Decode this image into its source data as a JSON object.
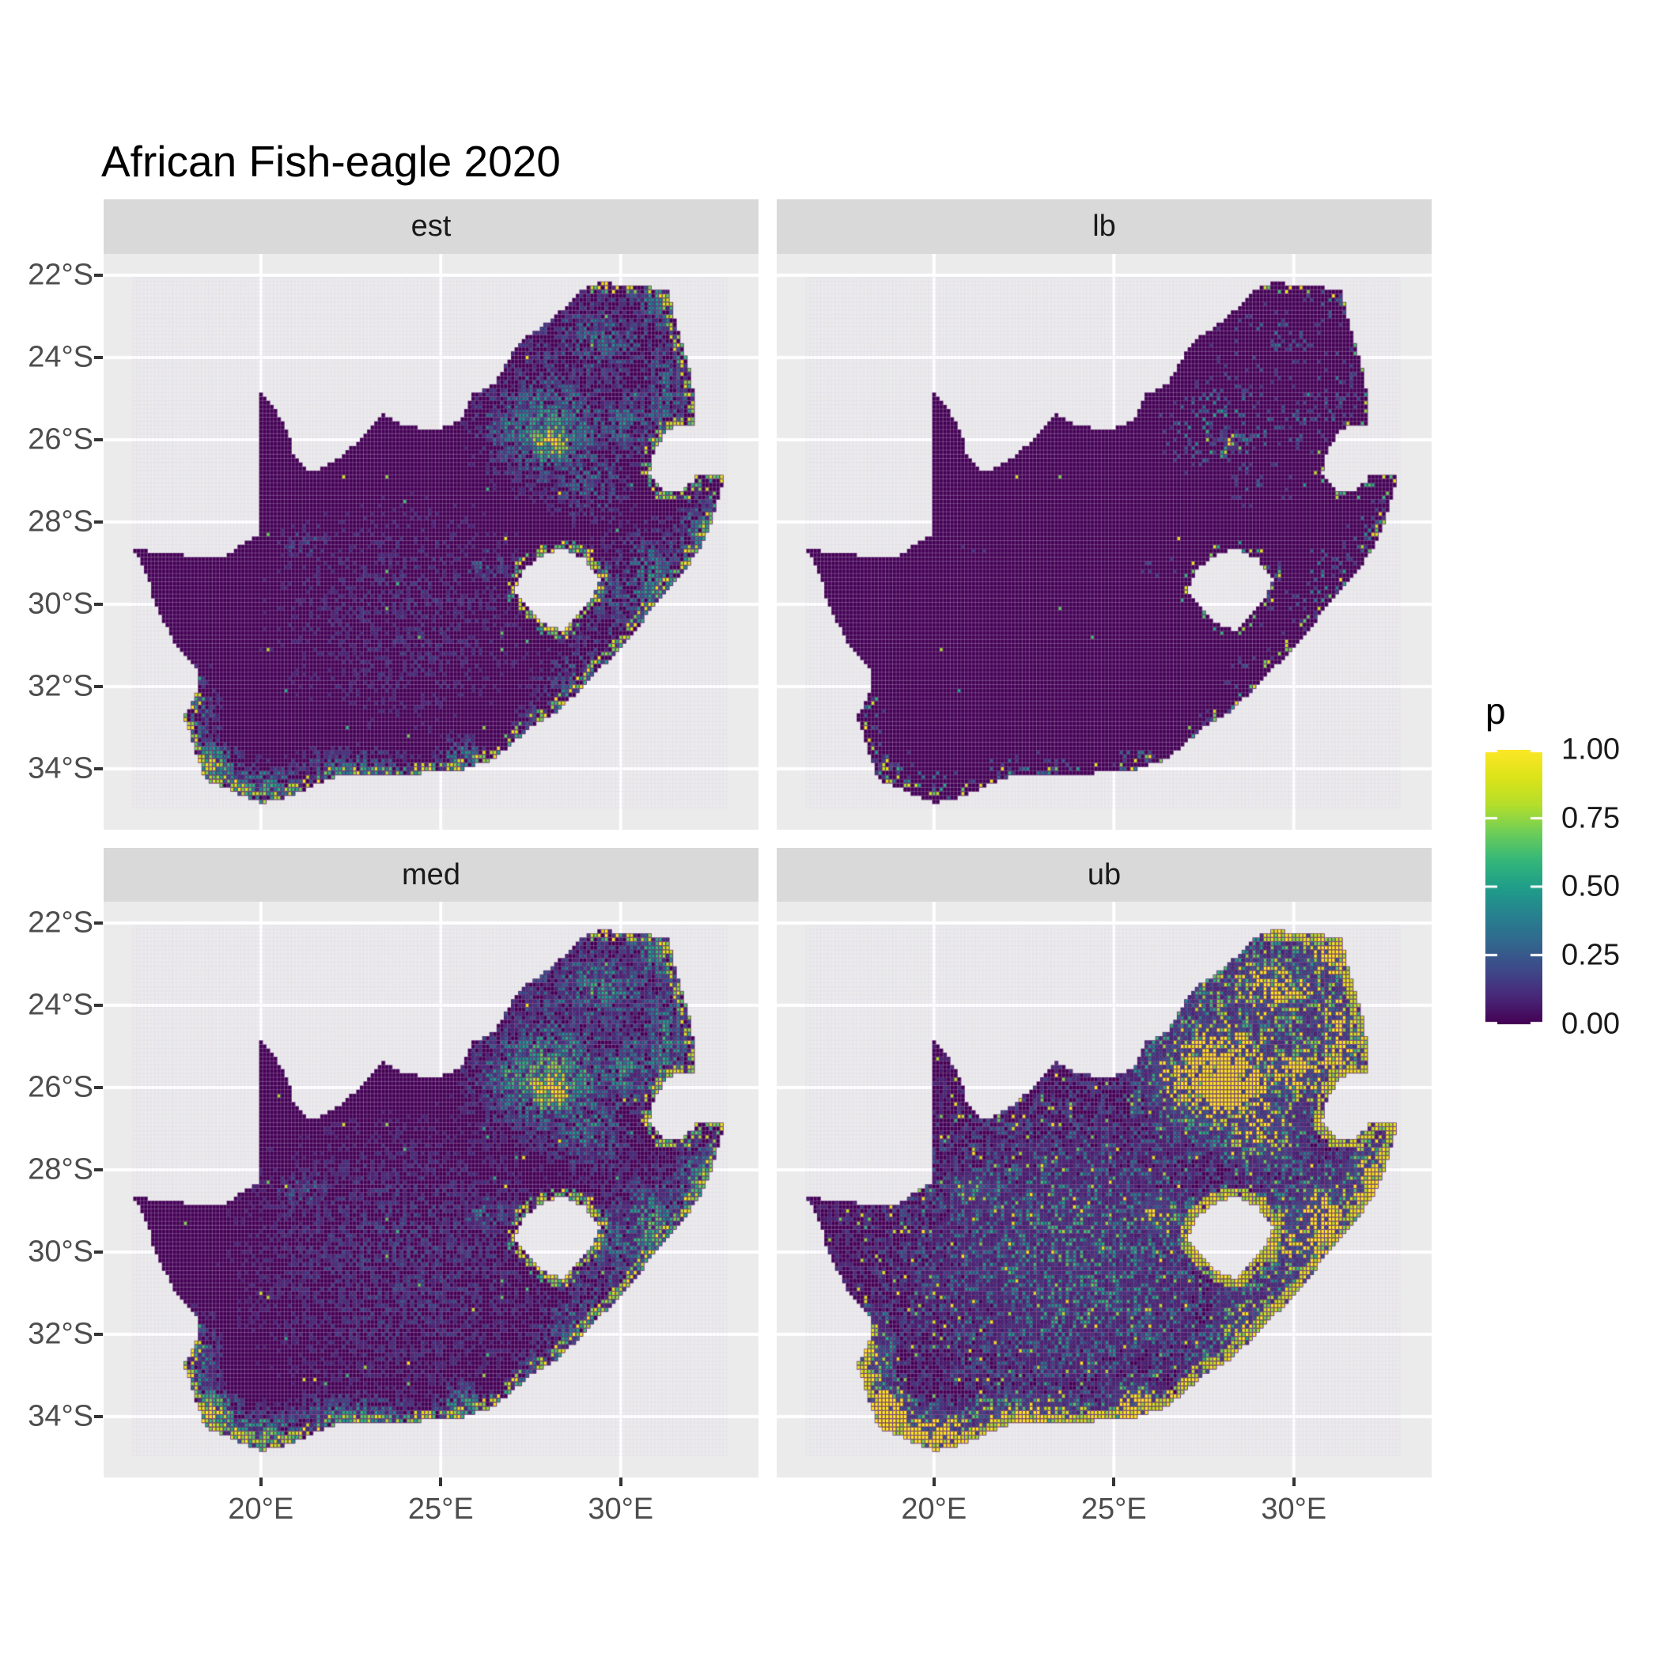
{
  "title": "African Fish-eagle 2020",
  "legend": {
    "title": "p",
    "ticks": [
      {
        "label": "1.00",
        "value": 1.0
      },
      {
        "label": "0.75",
        "value": 0.75
      },
      {
        "label": "0.50",
        "value": 0.5
      },
      {
        "label": "0.25",
        "value": 0.25
      },
      {
        "label": "0.00",
        "value": 0.0
      }
    ]
  },
  "facets": [
    {
      "key": "est",
      "label": "est",
      "col": 0,
      "row": 0
    },
    {
      "key": "lb",
      "label": "lb",
      "col": 1,
      "row": 0
    },
    {
      "key": "med",
      "label": "med",
      "col": 0,
      "row": 1
    },
    {
      "key": "ub",
      "label": "ub",
      "col": 1,
      "row": 1
    }
  ],
  "axes": {
    "x_ticks": [
      {
        "label": "20°E",
        "value": 20
      },
      {
        "label": "25°E",
        "value": 25
      },
      {
        "label": "30°E",
        "value": 30
      }
    ],
    "y_ticks": [
      {
        "label": "22°S",
        "value": -22
      },
      {
        "label": "24°S",
        "value": -24
      },
      {
        "label": "26°S",
        "value": -26
      },
      {
        "label": "28°S",
        "value": -28
      },
      {
        "label": "30°S",
        "value": -30
      },
      {
        "label": "32°S",
        "value": -32
      },
      {
        "label": "34°S",
        "value": -34
      }
    ]
  },
  "colors": {
    "panel_bg": "#ebebeb",
    "strip_bg": "#d9d9d9",
    "grid_major": "#ffffff",
    "axis_text": "#4d4d4d",
    "tick_mark": "#333333",
    "raster_base": "#440154",
    "cell_grid_line": "rgba(220,205,235,0.28)"
  },
  "chart_data": {
    "type": "heatmap",
    "subtype": "faceted-raster-probability-map",
    "title": "African Fish-eagle 2020",
    "facets": [
      "est",
      "lb",
      "med",
      "ub"
    ],
    "legend_title": "p",
    "legend_range": [
      0,
      1
    ],
    "legend_breaks": [
      0,
      0.25,
      0.5,
      0.75,
      1.0
    ],
    "x_domain": [
      15.63,
      33.83
    ],
    "y_domain": [
      -35.48,
      -21.48
    ],
    "x_ticks": [
      20,
      25,
      30
    ],
    "y_ticks": [
      -22,
      -24,
      -26,
      -28,
      -30,
      -32,
      -34
    ],
    "cell_deg": 0.1,
    "grid_origin_center": [
      16.5,
      -22.1
    ],
    "grid_size": [
      165,
      129
    ],
    "palette": {
      "name": "viridis",
      "stops": [
        [
          0,
          "#440154"
        ],
        [
          0.1,
          "#482878"
        ],
        [
          0.2,
          "#3e4a89"
        ],
        [
          0.3,
          "#31688e"
        ],
        [
          0.4,
          "#26828e"
        ],
        [
          0.5,
          "#1f9e89"
        ],
        [
          0.6,
          "#35b779"
        ],
        [
          0.7,
          "#6ece58"
        ],
        [
          0.8,
          "#b5de2b"
        ],
        [
          0.9,
          "#dce319"
        ],
        [
          1,
          "#fde725"
        ]
      ]
    },
    "region": {
      "name": "South Africa",
      "outer": [
        [
          16.45,
          -28.63
        ],
        [
          17.1,
          -28.75
        ],
        [
          17.7,
          -28.77
        ],
        [
          18.2,
          -28.9
        ],
        [
          19.0,
          -28.85
        ],
        [
          19.55,
          -28.5
        ],
        [
          20.0,
          -28.27
        ],
        [
          20.0,
          -26.7
        ],
        [
          20.0,
          -24.88
        ],
        [
          20.45,
          -25.35
        ],
        [
          20.8,
          -25.9
        ],
        [
          20.85,
          -26.3
        ],
        [
          21.4,
          -26.8
        ],
        [
          22.1,
          -26.5
        ],
        [
          22.75,
          -26.0
        ],
        [
          23.35,
          -25.35
        ],
        [
          24.0,
          -25.65
        ],
        [
          24.85,
          -25.78
        ],
        [
          25.55,
          -25.55
        ],
        [
          25.9,
          -24.9
        ],
        [
          26.5,
          -24.65
        ],
        [
          26.95,
          -23.95
        ],
        [
          27.4,
          -23.5
        ],
        [
          28.1,
          -23.05
        ],
        [
          28.95,
          -22.35
        ],
        [
          29.45,
          -22.15
        ],
        [
          30.1,
          -22.25
        ],
        [
          30.85,
          -22.3
        ],
        [
          31.3,
          -22.35
        ],
        [
          31.55,
          -23.2
        ],
        [
          31.8,
          -23.9
        ],
        [
          32.0,
          -24.7
        ],
        [
          32.02,
          -25.63
        ],
        [
          31.35,
          -25.72
        ],
        [
          30.95,
          -26.2
        ],
        [
          30.8,
          -26.8
        ],
        [
          31.1,
          -27.2
        ],
        [
          31.55,
          -27.3
        ],
        [
          31.97,
          -27.05
        ],
        [
          32.1,
          -26.85
        ],
        [
          32.89,
          -26.86
        ],
        [
          32.55,
          -27.9
        ],
        [
          32.25,
          -28.55
        ],
        [
          31.75,
          -29.2
        ],
        [
          31.05,
          -29.9
        ],
        [
          30.3,
          -30.75
        ],
        [
          29.55,
          -31.45
        ],
        [
          28.85,
          -32.1
        ],
        [
          28.1,
          -32.7
        ],
        [
          27.4,
          -33.05
        ],
        [
          26.5,
          -33.75
        ],
        [
          25.65,
          -34.0
        ],
        [
          25.0,
          -34.0
        ],
        [
          24.0,
          -34.2
        ],
        [
          23.0,
          -34.1
        ],
        [
          22.2,
          -34.15
        ],
        [
          21.5,
          -34.4
        ],
        [
          20.5,
          -34.75
        ],
        [
          20.0,
          -34.83
        ],
        [
          19.4,
          -34.6
        ],
        [
          18.85,
          -34.4
        ],
        [
          18.5,
          -34.3
        ],
        [
          18.4,
          -34.1
        ],
        [
          18.3,
          -33.9
        ],
        [
          18.05,
          -33.2
        ],
        [
          17.85,
          -32.75
        ],
        [
          18.25,
          -32.1
        ],
        [
          18.25,
          -31.6
        ],
        [
          17.65,
          -31.0
        ],
        [
          17.05,
          -30.0
        ],
        [
          16.9,
          -29.4
        ]
      ],
      "lesotho_hole": [
        [
          27.05,
          -29.65
        ],
        [
          27.35,
          -29.1
        ],
        [
          27.75,
          -28.85
        ],
        [
          28.35,
          -28.6
        ],
        [
          29.0,
          -28.9
        ],
        [
          29.45,
          -29.35
        ],
        [
          29.15,
          -29.95
        ],
        [
          28.85,
          -30.2
        ],
        [
          28.35,
          -30.65
        ],
        [
          27.75,
          -30.4
        ],
        [
          27.35,
          -30.05
        ]
      ]
    },
    "hotspots": [
      [
        28.05,
        -26.05,
        0.55,
        0.45,
        1.15
      ],
      [
        28.1,
        -25.7,
        1.4,
        1.05,
        0.65
      ],
      [
        27.0,
        -25.7,
        0.8,
        0.55,
        0.55
      ],
      [
        29.4,
        -23.6,
        1.2,
        0.8,
        0.5
      ],
      [
        31.1,
        -22.8,
        0.8,
        0.6,
        0.55
      ],
      [
        31.2,
        -24.9,
        0.6,
        1.1,
        0.5
      ],
      [
        30.2,
        -25.6,
        0.75,
        0.6,
        0.55
      ],
      [
        29.1,
        -26.9,
        0.9,
        0.8,
        0.45
      ],
      [
        26.2,
        -29.1,
        0.5,
        0.45,
        0.4
      ],
      [
        30.9,
        -29.55,
        0.8,
        1.0,
        0.6
      ],
      [
        32.2,
        -28.35,
        0.55,
        0.7,
        0.6
      ],
      [
        29.6,
        -29.6,
        0.8,
        0.7,
        0.45
      ],
      [
        28.9,
        -31.9,
        0.9,
        0.7,
        0.42
      ],
      [
        18.6,
        -33.95,
        0.5,
        0.4,
        1.0
      ],
      [
        19.9,
        -34.45,
        1.0,
        0.4,
        0.7
      ],
      [
        22.6,
        -34.05,
        1.2,
        0.4,
        0.55
      ],
      [
        25.6,
        -33.85,
        0.55,
        0.45,
        0.6
      ],
      [
        27.9,
        -33.0,
        0.6,
        0.5,
        0.5
      ],
      [
        21.2,
        -28.45,
        0.55,
        0.35,
        0.35
      ],
      [
        18.3,
        -32.7,
        0.4,
        0.8,
        0.45
      ],
      [
        24.0,
        -30.2,
        3.6,
        2.6,
        0.2
      ],
      [
        28.6,
        -24.3,
        2.3,
        1.7,
        0.3
      ],
      [
        30.1,
        -30.3,
        1.6,
        1.6,
        0.3
      ]
    ],
    "facet_params": {
      "est": {
        "gain": 1.0,
        "gamma": 1.0,
        "floor": 0.1,
        "keep": 0.45,
        "damp": 0.35,
        "thin_all": false,
        "sparkle": 0.9972,
        "sparkle_base": 0.5,
        "coast": 0.5,
        "coast_base": 0.45
      },
      "lb": {
        "gain": 1.05,
        "gamma": 1.35,
        "floor": 0.14,
        "keep": 0.22,
        "damp": 0.22,
        "thin_all": true,
        "sparkle": 0.9988,
        "sparkle_base": 0.45,
        "coast": 0.87,
        "coast_base": 0.45
      },
      "med": {
        "gain": 1.22,
        "gamma": 0.95,
        "floor": 0.09,
        "keep": 0.5,
        "damp": 0.35,
        "thin_all": false,
        "sparkle": 0.9952,
        "sparkle_base": 0.5,
        "coast": 0.42,
        "coast_base": 0.5
      },
      "ub": {
        "gain": 2.4,
        "gamma": 0.8,
        "floor": 0.07,
        "keep": 0.35,
        "damp": 0.3,
        "thin_all": false,
        "sparkle": 0.958,
        "sparkle_base": 0.55,
        "coast": 0.1,
        "coast_base": 0.7
      }
    }
  }
}
